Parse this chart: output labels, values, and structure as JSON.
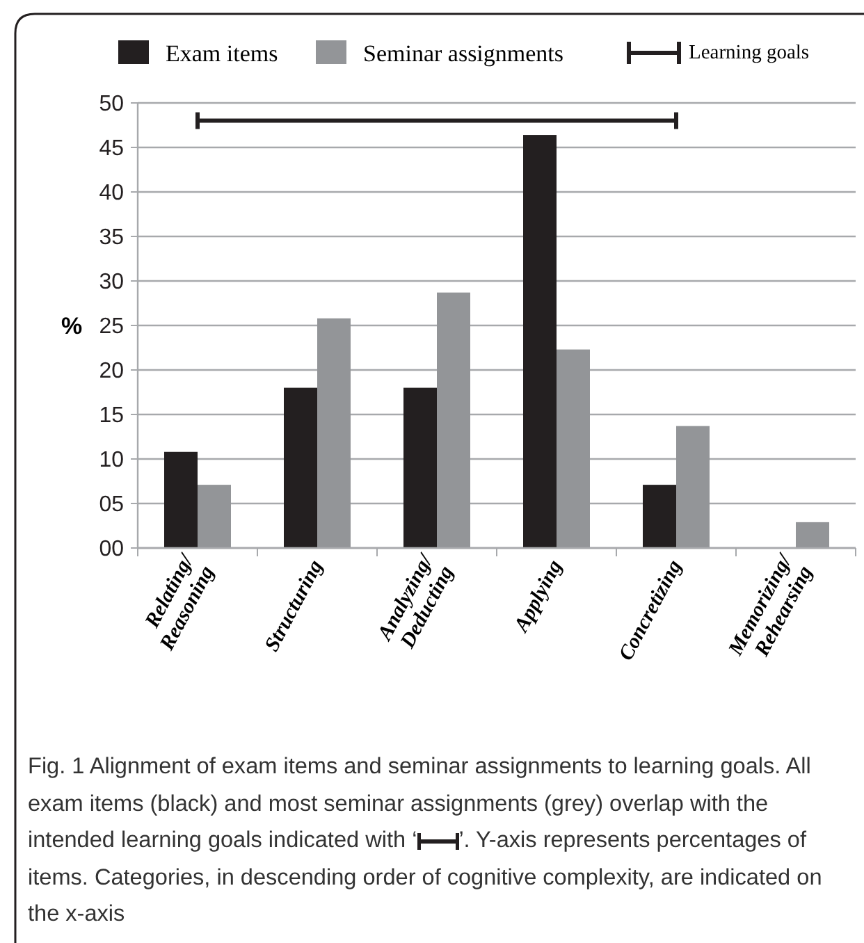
{
  "chart_data": {
    "type": "bar",
    "ylabel": "%",
    "categories": [
      "Relating/Reasoning",
      "Structuring",
      "Analyzing/Deducting",
      "Applying",
      "Concretizing",
      "Memorizing/Rehearsing"
    ],
    "series": [
      {
        "name": "Exam items",
        "color": "#231f20",
        "values": [
          10.8,
          18,
          18,
          46.4,
          7.1,
          null
        ]
      },
      {
        "name": "Seminar assignments",
        "color": "#939598",
        "values": [
          7.1,
          25.8,
          28.7,
          22.3,
          13.7,
          2.9
        ]
      },
      {
        "name": "Learning goals",
        "type": "line",
        "color": "#231f20",
        "values": [
          48,
          48,
          48,
          48,
          48,
          null
        ]
      }
    ],
    "ylim": [
      0,
      50
    ],
    "yticks": [
      {
        "value": 0,
        "label": "00"
      },
      {
        "value": 5,
        "label": "05"
      },
      10,
      15,
      20,
      25,
      30,
      35,
      40,
      45,
      50
    ],
    "grid": "y",
    "legend": "top",
    "marker": "none",
    "line_style": "solid",
    "annotations": [
      "Fig. 1 Alignment of exam items and seminar assignments to learning goals. All exam items (black) and most seminar assignments (grey) overlap with the intended learning goals indicated with ‘",
      "’. Y-axis represents percentages of items. Categories, in descending order of cognitive complexity, are indicated on the x-axis"
    ]
  }
}
